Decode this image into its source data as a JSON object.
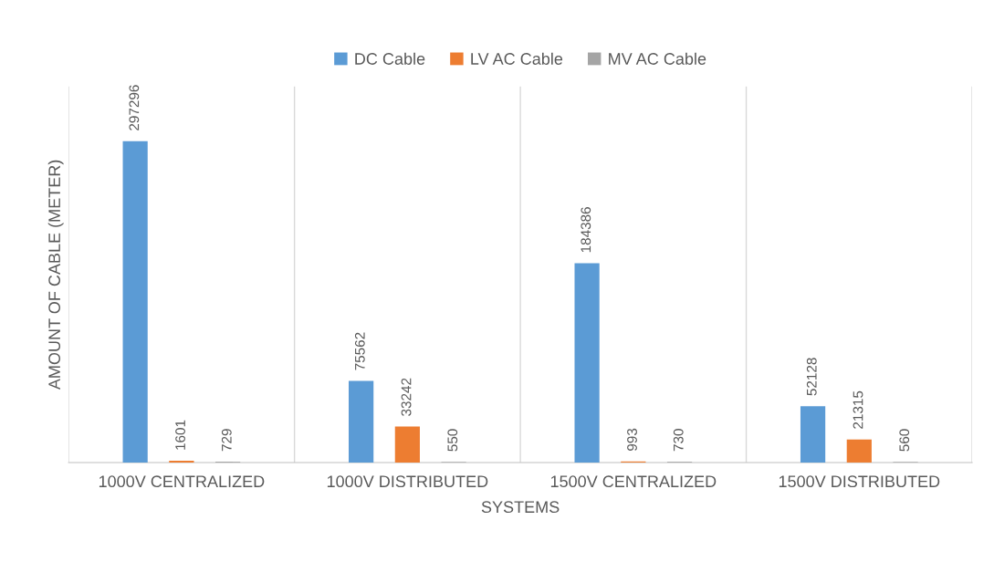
{
  "chart_data": {
    "type": "bar",
    "xlabel": "SYSTEMS",
    "ylabel": "AMOUNT OF CABLE (METER)",
    "categories": [
      "1000V CENTRALIZED",
      "1000V DISTRIBUTED",
      "1500V CENTRALIZED",
      "1500V DISTRIBUTED"
    ],
    "series": [
      {
        "name": "DC Cable",
        "color": "#5b9bd5",
        "values": [
          297296,
          75562,
          184386,
          52128
        ]
      },
      {
        "name": "LV AC Cable",
        "color": "#ed7d31",
        "values": [
          1601,
          33242,
          993,
          21315
        ]
      },
      {
        "name": "MV AC Cable",
        "color": "#a5a5a5",
        "values": [
          729,
          550,
          730,
          560
        ]
      }
    ],
    "data_labels": true,
    "legend": "top",
    "grid": "x",
    "tick_labels": "x"
  }
}
